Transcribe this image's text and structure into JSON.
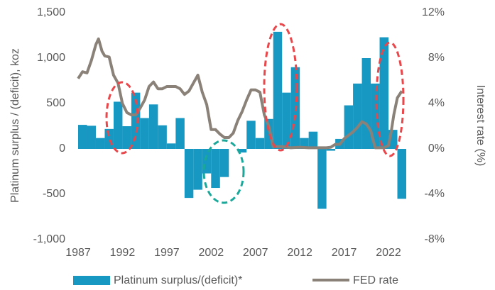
{
  "chart_data": {
    "type": "bar",
    "y_label": "Platinum surplus / (deficit), koz",
    "y2_label": "Interest rate (%)",
    "x": [
      1987,
      1988,
      1989,
      1990,
      1991,
      1992,
      1993,
      1994,
      1995,
      1996,
      1997,
      1998,
      1999,
      2000,
      2001,
      2002,
      2003,
      2004,
      2005,
      2006,
      2007,
      2008,
      2009,
      2010,
      2011,
      2012,
      2013,
      2014,
      2015,
      2016,
      2017,
      2018,
      2019,
      2020,
      2021,
      2022,
      2023
    ],
    "xlim": [
      1987,
      2024
    ],
    "xticks": [
      1987,
      1992,
      1997,
      2002,
      2007,
      2012,
      2017,
      2022
    ],
    "ylim": [
      -1000,
      1500
    ],
    "yticks": [
      {
        "value": -1000,
        "label": "-1,000"
      },
      -500,
      0,
      500,
      {
        "value": 1000,
        "label": "1,000"
      },
      {
        "value": 1500,
        "label": "1,500"
      }
    ],
    "y2lim": [
      -8,
      12
    ],
    "y2ticks": [
      {
        "value": -8,
        "label": "-8%"
      },
      {
        "value": -4,
        "label": "-4%"
      },
      {
        "value": 0,
        "label": "0%"
      },
      {
        "value": 4,
        "label": "4%"
      },
      {
        "value": 8,
        "label": "8%"
      },
      {
        "value": 12,
        "label": "12%"
      }
    ],
    "series": [
      {
        "name": "Platinum surplus/(deficit)*",
        "color": "#1798c3",
        "values": [
          265,
          255,
          120,
          220,
          520,
          250,
          620,
          340,
          490,
          260,
          60,
          340,
          -540,
          -450,
          -270,
          -430,
          -310,
          0,
          -40,
          310,
          120,
          330,
          1290,
          620,
          900,
          120,
          190,
          -660,
          -20,
          110,
          480,
          720,
          1000,
          720,
          1230,
          210,
          -550
        ]
      },
      {
        "name": "FED rate",
        "color": "#8a8178",
        "axis": "y2",
        "x": [
          1987,
          1987.5,
          1988,
          1988.5,
          1989,
          1989.3,
          1989.7,
          1990,
          1990.5,
          1991,
          1991.5,
          1992,
          1992.5,
          1993,
          1993.5,
          1994,
          1994.5,
          1995,
          1995.5,
          1996,
          1996.5,
          1997,
          1997.5,
          1998,
          1998.5,
          1999,
          1999.5,
          2000,
          2000.5,
          2001,
          2001.5,
          2002,
          2002.5,
          2003,
          2003.5,
          2004,
          2004.5,
          2005,
          2005.5,
          2006,
          2006.5,
          2007,
          2007.5,
          2008,
          2008.5,
          2009,
          2010,
          2011,
          2012,
          2013,
          2014,
          2015,
          2015.5,
          2016,
          2016.5,
          2017,
          2017.5,
          2018,
          2018.5,
          2019,
          2019.5,
          2020,
          2020.5,
          2021,
          2021.5,
          2022,
          2022.3,
          2022.6,
          2023,
          2023.5
        ],
        "values": [
          6.2,
          6.8,
          6.7,
          7.8,
          9.2,
          9.7,
          8.6,
          8.2,
          8.1,
          6.5,
          5.8,
          4.0,
          3.2,
          3.0,
          3.0,
          3.6,
          4.3,
          5.5,
          5.9,
          5.3,
          5.3,
          5.5,
          5.5,
          5.5,
          5.3,
          4.8,
          5.1,
          5.8,
          6.5,
          5.0,
          3.9,
          1.7,
          1.7,
          1.3,
          1.0,
          1.0,
          1.4,
          2.5,
          3.3,
          4.3,
          5.2,
          5.2,
          5.0,
          3.0,
          2.0,
          0.2,
          0.2,
          0.1,
          0.15,
          0.1,
          0.1,
          0.1,
          0.15,
          0.4,
          0.4,
          0.9,
          1.2,
          1.5,
          1.9,
          2.4,
          2.2,
          1.6,
          0.1,
          0.1,
          0.1,
          0.3,
          1.5,
          3.0,
          4.5,
          5.1
        ]
      }
    ]
  }
}
